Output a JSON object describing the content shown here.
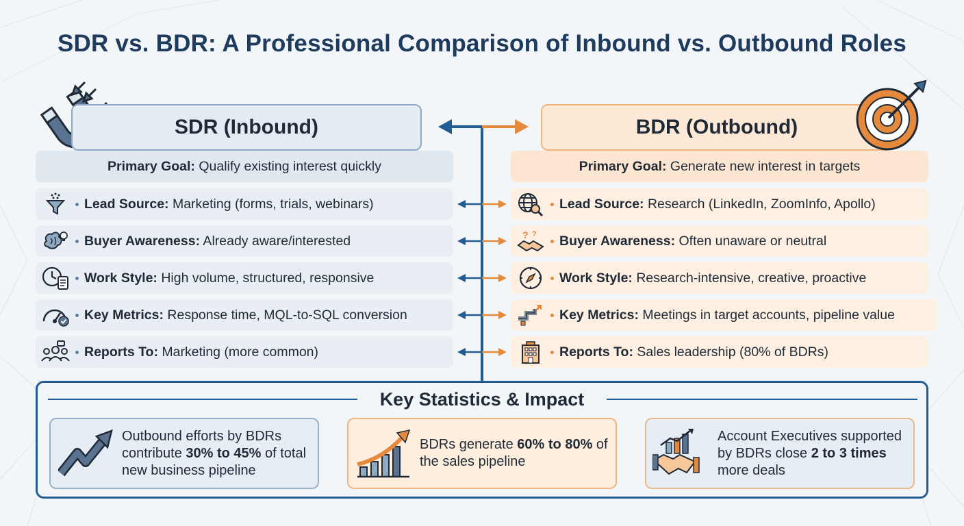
{
  "title": "SDR vs. BDR: A Professional Comparison of Inbound vs. Outbound Roles",
  "colors": {
    "navy": "#1f5d94",
    "orange": "#e58a3c",
    "sdr_bg": "#e8eef4",
    "bdr_bg": "#fdefe2"
  },
  "sdr": {
    "header": "SDR (Inbound)",
    "header_icon": "magnet-icon",
    "goal_label": "Primary Goal:",
    "goal_value": " Qualify existing interest quickly",
    "rows": [
      {
        "icon": "funnel-icon",
        "label": "Lead Source:",
        "value": " Marketing (forms, trials, webinars)"
      },
      {
        "icon": "brain-lightbulb-icon",
        "label": "Buyer Awareness:",
        "value": " Already aware/interested"
      },
      {
        "icon": "clock-checklist-icon",
        "label": "Work Style:",
        "value": " High volume, structured, responsive"
      },
      {
        "icon": "speedometer-check-icon",
        "label": "Key Metrics:",
        "value": " Response time, MQL-to-SQL conversion"
      },
      {
        "icon": "team-icon",
        "label": "Reports To:",
        "value": " Marketing (more common)"
      }
    ]
  },
  "bdr": {
    "header": "BDR (Outbound)",
    "header_icon": "target-arrow-icon",
    "goal_label": "Primary Goal:",
    "goal_value": " Generate new interest in targets",
    "rows": [
      {
        "icon": "globe-search-icon",
        "label": "Lead Source:",
        "value": " Research (LinkedIn, ZoomInfo, Apollo)"
      },
      {
        "icon": "handshake-question-icon",
        "label": "Buyer Awareness:",
        "value": " Often unaware or neutral"
      },
      {
        "icon": "compass-icon",
        "label": "Work Style:",
        "value": " Research-intensive, creative, proactive"
      },
      {
        "icon": "pipeline-icon",
        "label": "Key Metrics:",
        "value": " Meetings in target accounts, pipeline value"
      },
      {
        "icon": "building-icon",
        "label": "Reports To:",
        "value": " Sales leadership (80% of BDRs)"
      }
    ]
  },
  "stats": {
    "title": "Key Statistics & Impact",
    "cards": [
      {
        "icon": "trend-arrow-icon",
        "pre": "Outbound efforts by BDRs contribute ",
        "bold": "30% to 45%",
        "post": " of total new business pipeline"
      },
      {
        "icon": "bar-chart-growth-icon",
        "pre": "BDRs generate ",
        "bold": "60% to 80%",
        "post": " of the sales pipeline"
      },
      {
        "icon": "handshake-chart-icon",
        "pre": "Account Executives supported by BDRs close ",
        "bold": "2 to 3 times",
        "post": " more deals"
      }
    ]
  }
}
